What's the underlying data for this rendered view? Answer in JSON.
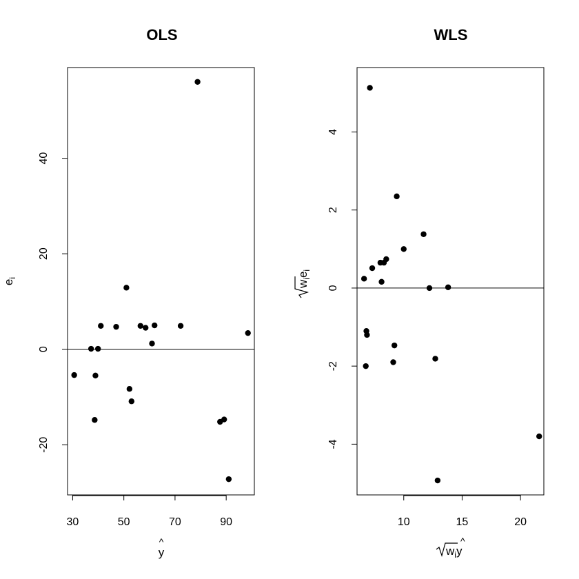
{
  "chart_data": [
    {
      "type": "scatter",
      "title": "OLS",
      "xlabel": "ŷ",
      "ylabel": "e_i",
      "xlim": [
        28,
        101
      ],
      "ylim": [
        -30.5,
        59
      ],
      "xticks": [
        30,
        50,
        70,
        90
      ],
      "xtick_labels": [
        "30",
        "50",
        "70",
        "90"
      ],
      "yticks": [
        -20,
        0,
        20,
        40
      ],
      "ytick_labels": [
        "-20",
        "0",
        "20",
        "40"
      ],
      "hline": 0,
      "grid": false,
      "series": [
        {
          "x": [
            30.6,
            37.2,
            38.6,
            38.9,
            39.9,
            41.0,
            47.0,
            51.0,
            52.2,
            53.0,
            56.5,
            58.5,
            61.0,
            62.0,
            72.2,
            78.8,
            87.6,
            89.2,
            91.0,
            98.5
          ],
          "y": [
            -5.4,
            0.1,
            -14.8,
            -5.5,
            0.1,
            4.9,
            4.7,
            12.9,
            -8.3,
            -10.9,
            4.9,
            4.5,
            1.2,
            5.0,
            4.9,
            56.0,
            -15.2,
            -14.7,
            -27.2,
            3.4
          ]
        }
      ]
    },
    {
      "type": "scatter",
      "title": "WLS",
      "xlabel": "√w_i ŷ",
      "ylabel": "√w_i e_i",
      "xlim": [
        6.0,
        22.0
      ],
      "ylim": [
        -5.3,
        5.65
      ],
      "xticks": [
        10,
        15,
        20
      ],
      "xtick_labels": [
        "10",
        "15",
        "20"
      ],
      "yticks": [
        -4,
        -2,
        0,
        2,
        4
      ],
      "ytick_labels": [
        "-4",
        "-2",
        "0",
        "2",
        "4"
      ],
      "hline": 0,
      "grid": false,
      "series": [
        {
          "x": [
            6.6,
            6.75,
            6.8,
            6.85,
            7.1,
            7.3,
            8.0,
            8.1,
            8.3,
            8.5,
            9.1,
            9.2,
            9.4,
            10.0,
            11.7,
            12.2,
            12.7,
            12.9,
            13.8,
            21.6
          ],
          "y": [
            0.24,
            -2.0,
            -1.1,
            -1.2,
            5.13,
            0.51,
            0.65,
            0.16,
            0.65,
            0.74,
            -1.9,
            -1.47,
            2.35,
            1.0,
            1.38,
            0.0,
            -1.81,
            -4.93,
            0.02,
            -3.8
          ]
        }
      ]
    }
  ]
}
